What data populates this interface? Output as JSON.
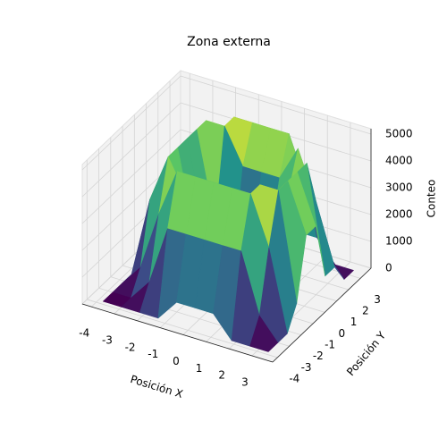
{
  "chart_data": {
    "type": "surface3d",
    "title": "Zona externa",
    "xlabel": "Posición X",
    "ylabel": "Posición Y",
    "zlabel": "Conteo",
    "x": [
      -3.8,
      -3,
      -2.2,
      -1.4,
      -0.6,
      0.2,
      1,
      1.8,
      2.6,
      3.4
    ],
    "y": [
      -3.8,
      -3,
      -2.2,
      -1.4,
      -0.6,
      0.2,
      1,
      1.8,
      2.6,
      3.4
    ],
    "z": [
      [
        0,
        0,
        0,
        0,
        800,
        800,
        800,
        0,
        0,
        0
      ],
      [
        0,
        0,
        800,
        3000,
        3000,
        3000,
        3000,
        3000,
        800,
        0
      ],
      [
        0,
        800,
        3000,
        4800,
        4800,
        4800,
        4800,
        4800,
        3000,
        0
      ],
      [
        0,
        3000,
        4800,
        3500,
        1500,
        1500,
        1500,
        4800,
        4800,
        800
      ],
      [
        800,
        3000,
        4800,
        1500,
        300,
        300,
        300,
        3500,
        4800,
        3000
      ],
      [
        800,
        3000,
        4800,
        1500,
        300,
        300,
        300,
        3500,
        4800,
        3000
      ],
      [
        800,
        3000,
        4800,
        1500,
        300,
        300,
        1500,
        3500,
        4800,
        800
      ],
      [
        0,
        3000,
        4800,
        4800,
        3500,
        3500,
        3500,
        4800,
        3000,
        800
      ],
      [
        0,
        800,
        3000,
        4800,
        4800,
        4800,
        4800,
        3000,
        800,
        0
      ],
      [
        0,
        0,
        0,
        800,
        3000,
        3000,
        800,
        800,
        0,
        0
      ]
    ],
    "xlim": [
      -4.4,
      3.9
    ],
    "ylim": [
      -4.4,
      3.9
    ],
    "zlim": [
      0,
      5200
    ],
    "xticks": [
      -4,
      -3,
      -2,
      -1,
      0,
      1,
      2,
      3
    ],
    "yticks": [
      -4,
      -3,
      -2,
      -1,
      0,
      1,
      2,
      3
    ],
    "zticks": [
      0,
      1000,
      2000,
      3000,
      4000,
      5000
    ],
    "colormap": "viridis",
    "grid": true
  }
}
